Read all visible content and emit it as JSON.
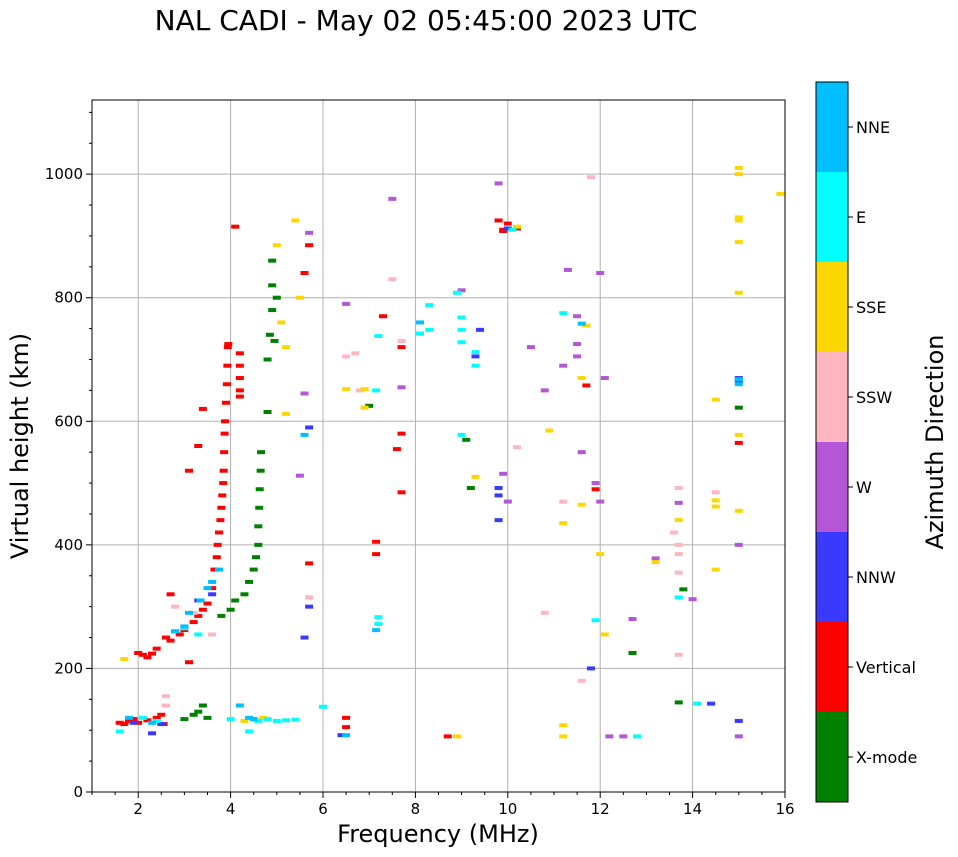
{
  "chart_data": {
    "type": "scatter",
    "title": "NAL CADI - May 02 05:45:00 2023 UTC",
    "xlabel": "Frequency (MHz)",
    "ylabel": "Virtual height (km)",
    "xlim": [
      1,
      16
    ],
    "ylim": [
      0,
      1120
    ],
    "xticks": [
      2,
      4,
      6,
      8,
      10,
      12,
      14,
      16
    ],
    "yticks": [
      0,
      200,
      400,
      600,
      800,
      1000
    ],
    "grid": true,
    "colorbar": {
      "label": "Azimuth Direction",
      "categories": [
        {
          "name": "X-mode",
          "color": "#008000"
        },
        {
          "name": "Vertical",
          "color": "#ff0000"
        },
        {
          "name": "NNW",
          "color": "#3a3aff"
        },
        {
          "name": "W",
          "color": "#b456d6"
        },
        {
          "name": "SSW",
          "color": "#ffb6c1"
        },
        {
          "name": "SSE",
          "color": "#ffd700"
        },
        {
          "name": "E",
          "color": "#00ffff"
        },
        {
          "name": "NNE",
          "color": "#00bfff"
        }
      ]
    },
    "series": [
      {
        "name": "Vertical",
        "points": [
          [
            1.6,
            112
          ],
          [
            1.7,
            110
          ],
          [
            1.8,
            115
          ],
          [
            1.9,
            118
          ],
          [
            2.0,
            112
          ],
          [
            2.2,
            116
          ],
          [
            2.4,
            120
          ],
          [
            2.5,
            125
          ],
          [
            2.6,
            140
          ],
          [
            2.55,
            110
          ],
          [
            2.0,
            225
          ],
          [
            2.1,
            222
          ],
          [
            2.2,
            218
          ],
          [
            2.3,
            224
          ],
          [
            2.4,
            232
          ],
          [
            2.6,
            250
          ],
          [
            2.7,
            245
          ],
          [
            2.8,
            260
          ],
          [
            2.9,
            255
          ],
          [
            3.0,
            262
          ],
          [
            2.7,
            320
          ],
          [
            3.1,
            210
          ],
          [
            3.2,
            275
          ],
          [
            3.3,
            285
          ],
          [
            3.4,
            295
          ],
          [
            3.5,
            305
          ],
          [
            3.6,
            330
          ],
          [
            3.65,
            360
          ],
          [
            3.7,
            380
          ],
          [
            3.72,
            400
          ],
          [
            3.75,
            420
          ],
          [
            3.78,
            440
          ],
          [
            3.8,
            460
          ],
          [
            3.82,
            480
          ],
          [
            3.84,
            500
          ],
          [
            3.85,
            520
          ],
          [
            3.86,
            550
          ],
          [
            3.87,
            580
          ],
          [
            3.88,
            600
          ],
          [
            3.9,
            630
          ],
          [
            3.92,
            660
          ],
          [
            3.93,
            690
          ],
          [
            3.94,
            720
          ],
          [
            3.95,
            725
          ],
          [
            4.2,
            710
          ],
          [
            4.2,
            690
          ],
          [
            4.2,
            670
          ],
          [
            4.2,
            650
          ],
          [
            4.2,
            640
          ],
          [
            4.1,
            915
          ],
          [
            3.3,
            560
          ],
          [
            3.1,
            520
          ],
          [
            3.4,
            620
          ],
          [
            5.6,
            840
          ],
          [
            5.7,
            885
          ],
          [
            5.7,
            370
          ],
          [
            6.5,
            120
          ],
          [
            6.5,
            105
          ],
          [
            7.15,
            405
          ],
          [
            7.15,
            385
          ],
          [
            7.3,
            770
          ],
          [
            7.6,
            555
          ],
          [
            7.7,
            580
          ],
          [
            7.7,
            485
          ],
          [
            7.7,
            720
          ],
          [
            8.7,
            90
          ],
          [
            9.8,
            925
          ],
          [
            9.9,
            910
          ],
          [
            10.0,
            920
          ],
          [
            10.2,
            912
          ],
          [
            9.9,
            908
          ],
          [
            11.9,
            490
          ],
          [
            15.0,
            565
          ],
          [
            11.7,
            658
          ]
        ]
      },
      {
        "name": "X-mode",
        "points": [
          [
            3.0,
            118
          ],
          [
            3.2,
            125
          ],
          [
            3.3,
            130
          ],
          [
            3.4,
            140
          ],
          [
            3.5,
            120
          ],
          [
            3.8,
            285
          ],
          [
            4.0,
            295
          ],
          [
            4.1,
            310
          ],
          [
            4.3,
            320
          ],
          [
            4.4,
            340
          ],
          [
            4.5,
            360
          ],
          [
            4.55,
            380
          ],
          [
            4.6,
            400
          ],
          [
            4.6,
            430
          ],
          [
            4.62,
            460
          ],
          [
            4.63,
            490
          ],
          [
            4.65,
            520
          ],
          [
            4.66,
            550
          ],
          [
            4.8,
            615
          ],
          [
            4.8,
            700
          ],
          [
            4.85,
            740
          ],
          [
            4.9,
            780
          ],
          [
            4.9,
            820
          ],
          [
            4.9,
            860
          ],
          [
            4.95,
            730
          ],
          [
            5.0,
            800
          ],
          [
            7.0,
            625
          ],
          [
            9.1,
            570
          ],
          [
            9.2,
            492
          ],
          [
            12.7,
            225
          ],
          [
            13.7,
            145
          ],
          [
            13.8,
            328
          ],
          [
            15.0,
            622
          ]
        ]
      },
      {
        "name": "NNW",
        "points": [
          [
            1.9,
            112
          ],
          [
            2.3,
            95
          ],
          [
            2.5,
            110
          ],
          [
            3.3,
            310
          ],
          [
            3.6,
            320
          ],
          [
            5.6,
            250
          ],
          [
            5.7,
            300
          ],
          [
            5.7,
            590
          ],
          [
            6.4,
            92
          ],
          [
            9.4,
            748
          ],
          [
            9.3,
            705
          ],
          [
            9.8,
            480
          ],
          [
            9.8,
            492
          ],
          [
            9.8,
            440
          ],
          [
            10.0,
            912
          ],
          [
            11.8,
            200
          ],
          [
            15.0,
            670
          ],
          [
            15.0,
            665
          ],
          [
            15.0,
            115
          ],
          [
            14.4,
            143
          ]
        ]
      },
      {
        "name": "W",
        "points": [
          [
            5.5,
            512
          ],
          [
            5.6,
            645
          ],
          [
            5.7,
            905
          ],
          [
            6.5,
            790
          ],
          [
            7.5,
            960
          ],
          [
            7.7,
            655
          ],
          [
            9.0,
            812
          ],
          [
            9.8,
            985
          ],
          [
            9.9,
            515
          ],
          [
            10.0,
            470
          ],
          [
            10.5,
            720
          ],
          [
            10.8,
            650
          ],
          [
            11.3,
            845
          ],
          [
            11.5,
            770
          ],
          [
            11.5,
            725
          ],
          [
            11.6,
            550
          ],
          [
            11.9,
            500
          ],
          [
            12.0,
            470
          ],
          [
            12.1,
            670
          ],
          [
            12.2,
            90
          ],
          [
            12.5,
            90
          ],
          [
            12.7,
            280
          ],
          [
            13.2,
            378
          ],
          [
            13.7,
            468
          ],
          [
            14.0,
            312
          ],
          [
            15.0,
            90
          ],
          [
            15.0,
            400
          ],
          [
            11.2,
            690
          ],
          [
            11.5,
            705
          ],
          [
            12.0,
            840
          ]
        ]
      },
      {
        "name": "SSW",
        "points": [
          [
            2.6,
            155
          ],
          [
            2.6,
            140
          ],
          [
            2.8,
            300
          ],
          [
            3.2,
            290
          ],
          [
            3.6,
            255
          ],
          [
            5.7,
            315
          ],
          [
            6.5,
            705
          ],
          [
            6.7,
            710
          ],
          [
            6.8,
            650
          ],
          [
            7.5,
            830
          ],
          [
            7.7,
            730
          ],
          [
            10.2,
            558
          ],
          [
            10.8,
            290
          ],
          [
            11.2,
            470
          ],
          [
            11.6,
            180
          ],
          [
            11.8,
            995
          ],
          [
            13.7,
            492
          ],
          [
            13.7,
            400
          ],
          [
            13.7,
            385
          ],
          [
            13.7,
            355
          ],
          [
            13.7,
            222
          ],
          [
            14.5,
            485
          ],
          [
            13.6,
            420
          ]
        ]
      },
      {
        "name": "SSE",
        "points": [
          [
            1.7,
            215
          ],
          [
            4.3,
            115
          ],
          [
            4.7,
            120
          ],
          [
            5.0,
            885
          ],
          [
            5.1,
            760
          ],
          [
            5.2,
            720
          ],
          [
            5.2,
            612
          ],
          [
            5.4,
            925
          ],
          [
            5.5,
            800
          ],
          [
            6.5,
            652
          ],
          [
            6.9,
            652
          ],
          [
            6.9,
            622
          ],
          [
            9.3,
            510
          ],
          [
            10.2,
            915
          ],
          [
            10.9,
            585
          ],
          [
            11.2,
            435
          ],
          [
            11.2,
            108
          ],
          [
            11.2,
            90
          ],
          [
            11.6,
            670
          ],
          [
            11.6,
            465
          ],
          [
            11.7,
            755
          ],
          [
            12.0,
            385
          ],
          [
            12.1,
            255
          ],
          [
            13.2,
            372
          ],
          [
            13.7,
            440
          ],
          [
            14.5,
            635
          ],
          [
            14.5,
            360
          ],
          [
            14.5,
            472
          ],
          [
            14.5,
            462
          ],
          [
            15.0,
            1010
          ],
          [
            15.0,
            1000
          ],
          [
            15.0,
            930
          ],
          [
            15.0,
            925
          ],
          [
            15.0,
            890
          ],
          [
            15.0,
            808
          ],
          [
            15.0,
            455
          ],
          [
            15.0,
            578
          ],
          [
            15.9,
            968
          ],
          [
            8.9,
            90
          ]
        ]
      },
      {
        "name": "E",
        "points": [
          [
            1.6,
            98
          ],
          [
            2.1,
            120
          ],
          [
            2.4,
            115
          ],
          [
            3.0,
            265
          ],
          [
            3.3,
            255
          ],
          [
            4.0,
            118
          ],
          [
            4.4,
            98
          ],
          [
            4.6,
            115
          ],
          [
            4.8,
            118
          ],
          [
            5.0,
            115
          ],
          [
            5.2,
            116
          ],
          [
            5.4,
            117
          ],
          [
            6.0,
            138
          ],
          [
            7.2,
            283
          ],
          [
            7.2,
            272
          ],
          [
            7.15,
            650
          ],
          [
            7.2,
            738
          ],
          [
            8.1,
            742
          ],
          [
            8.3,
            748
          ],
          [
            8.3,
            788
          ],
          [
            8.9,
            808
          ],
          [
            9.0,
            578
          ],
          [
            9.0,
            768
          ],
          [
            9.0,
            748
          ],
          [
            9.0,
            728
          ],
          [
            9.3,
            712
          ],
          [
            9.3,
            690
          ],
          [
            10.1,
            910
          ],
          [
            11.9,
            278
          ],
          [
            12.8,
            90
          ],
          [
            13.7,
            315
          ],
          [
            14.1,
            143
          ],
          [
            11.2,
            775
          ]
        ]
      },
      {
        "name": "NNE",
        "points": [
          [
            1.8,
            120
          ],
          [
            2.3,
            112
          ],
          [
            2.8,
            260
          ],
          [
            3.0,
            268
          ],
          [
            3.1,
            290
          ],
          [
            3.35,
            310
          ],
          [
            3.5,
            330
          ],
          [
            3.6,
            340
          ],
          [
            3.75,
            360
          ],
          [
            4.2,
            140
          ],
          [
            4.4,
            120
          ],
          [
            4.5,
            118
          ],
          [
            5.6,
            578
          ],
          [
            6.5,
            92
          ],
          [
            7.15,
            262
          ],
          [
            8.1,
            760
          ],
          [
            11.6,
            758
          ],
          [
            15.0,
            660
          ],
          [
            15.0,
            668
          ]
        ]
      }
    ]
  }
}
